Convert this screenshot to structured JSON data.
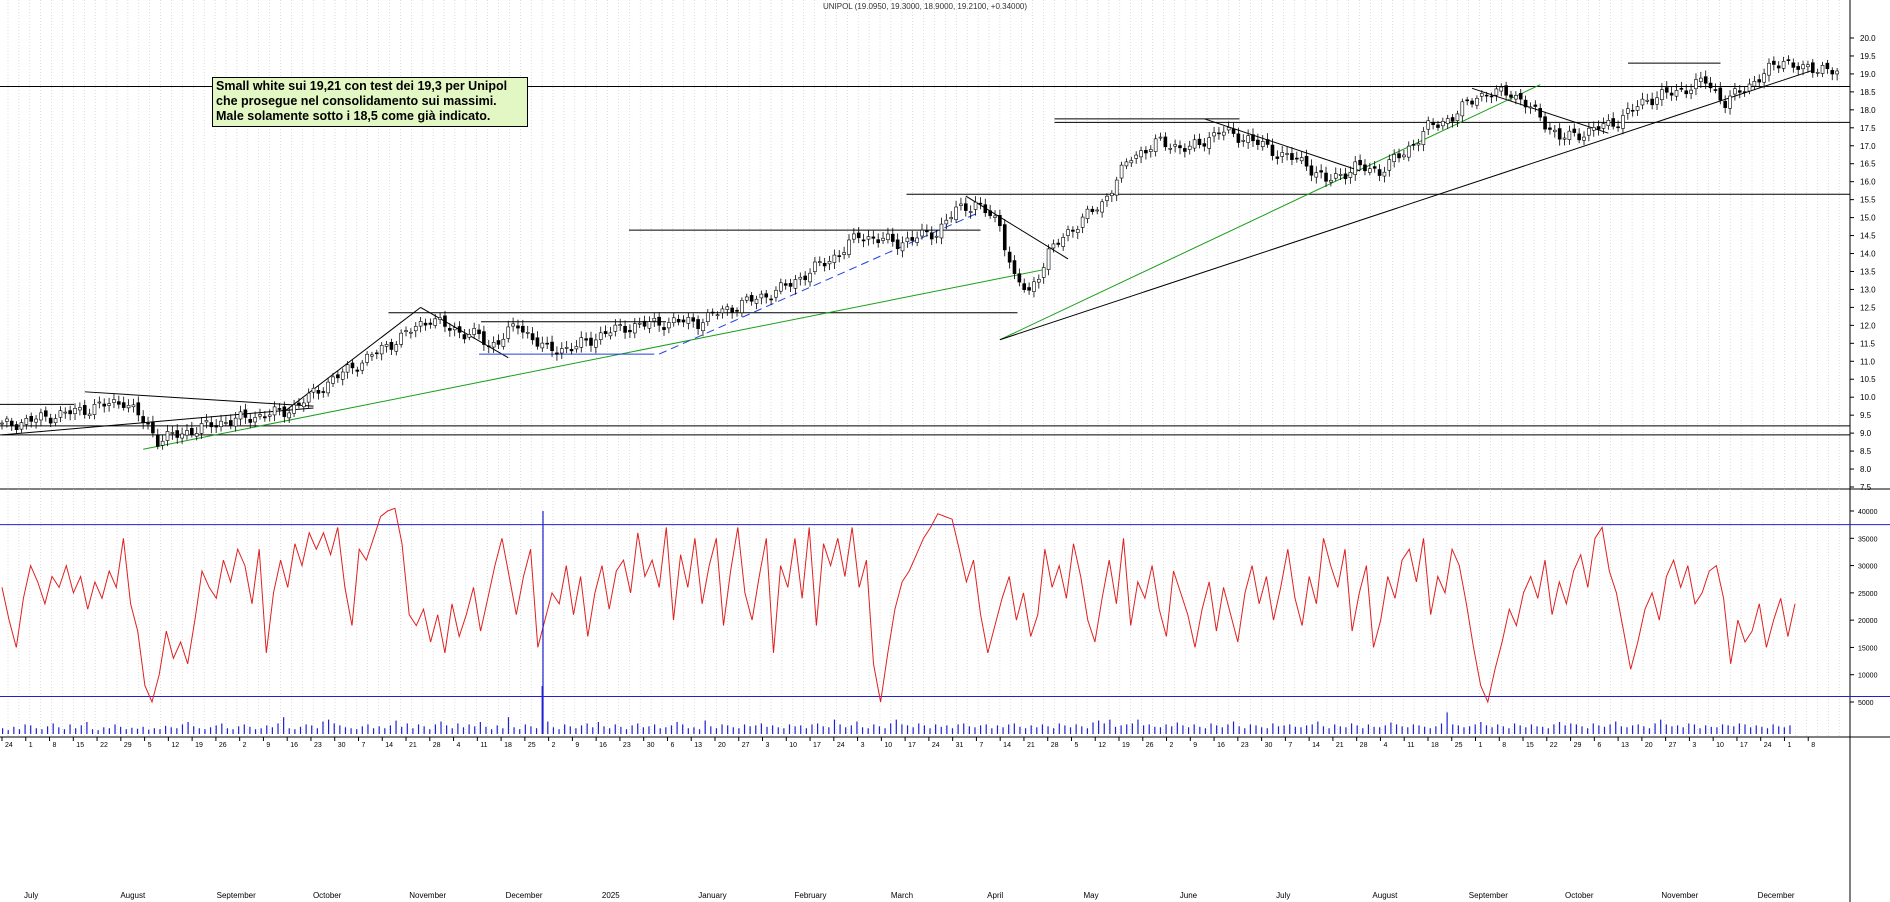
{
  "title": "UNIPOL (19.0950, 19.3000, 18.9000, 19.2100, +0.34000)",
  "annotation": {
    "lines": [
      "Small white sui 19,21 con test dei 19,3 per Unipol",
      "che prosegue nel consolidamento sui massimi.",
      "Male solamente sotto i 18,5 come già indicato."
    ]
  },
  "colors": {
    "candle": "#000000",
    "grid": "#c8c8c8",
    "support_line": "#000000",
    "trend_green": "#1a9e1a",
    "trend_blue_dashed": "#2040e0",
    "oscillator": "#e02020",
    "oscillator_bands": "#2020d0",
    "volume": "#2020d0",
    "note_bg": "#e3f7c4"
  },
  "chart_data": {
    "type": "candlestick",
    "price_axis": {
      "ylim": [
        7.5,
        20.0
      ],
      "ticks": [
        "20.0",
        "19.5",
        "19.0",
        "18.5",
        "18.0",
        "17.5",
        "17.0",
        "16.5",
        "16.0",
        "15.5",
        "15.0",
        "14.5",
        "14.0",
        "13.5",
        "13.0",
        "12.5",
        "12.0",
        "11.5",
        "11.0",
        "10.5",
        "10.0",
        "9.5",
        "9.0",
        "8.5",
        "8.0",
        "7.5"
      ]
    },
    "price_path": [
      [
        0,
        9.2
      ],
      [
        15,
        9.6
      ],
      [
        25,
        9.9
      ],
      [
        30,
        9.2
      ],
      [
        32,
        8.8
      ],
      [
        45,
        9.3
      ],
      [
        58,
        9.6
      ],
      [
        61,
        9.8
      ],
      [
        68,
        10.5
      ],
      [
        80,
        11.5
      ],
      [
        88,
        12.2
      ],
      [
        92,
        11.9
      ],
      [
        98,
        11.7
      ],
      [
        100,
        11.4
      ],
      [
        106,
        12.0
      ],
      [
        112,
        11.3
      ],
      [
        118,
        11.4
      ],
      [
        124,
        11.8
      ],
      [
        130,
        12.0
      ],
      [
        138,
        12.1
      ],
      [
        143,
        12.1
      ],
      [
        148,
        12.4
      ],
      [
        160,
        13.0
      ],
      [
        172,
        14.0
      ],
      [
        176,
        14.5
      ],
      [
        184,
        14.3
      ],
      [
        192,
        14.6
      ],
      [
        196,
        15.2
      ],
      [
        200,
        15.4
      ],
      [
        205,
        14.8
      ],
      [
        208,
        13.3
      ],
      [
        211,
        12.9
      ],
      [
        215,
        14.0
      ],
      [
        219,
        14.6
      ],
      [
        226,
        15.4
      ],
      [
        232,
        16.7
      ],
      [
        238,
        17.1
      ],
      [
        244,
        16.9
      ],
      [
        250,
        17.4
      ],
      [
        256,
        17.2
      ],
      [
        262,
        16.8
      ],
      [
        268,
        16.5
      ],
      [
        272,
        16.0
      ],
      [
        278,
        16.4
      ],
      [
        283,
        16.3
      ],
      [
        288,
        16.8
      ],
      [
        293,
        17.5
      ],
      [
        298,
        17.8
      ],
      [
        303,
        18.4
      ],
      [
        310,
        18.5
      ],
      [
        316,
        17.8
      ],
      [
        320,
        17.2
      ],
      [
        326,
        17.4
      ],
      [
        332,
        17.7
      ],
      [
        338,
        18.3
      ],
      [
        344,
        18.5
      ],
      [
        350,
        18.8
      ],
      [
        354,
        18.2
      ],
      [
        358,
        18.6
      ],
      [
        362,
        19.0
      ],
      [
        366,
        19.4
      ],
      [
        370,
        19.1
      ],
      [
        374,
        19.2
      ],
      [
        377,
        19.0
      ]
    ],
    "support_lines": [
      {
        "price": 18.65,
        "from": 0,
        "to": 1
      },
      {
        "price": 17.65,
        "from": 0.57,
        "to": 1
      },
      {
        "price": 15.65,
        "from": 0.49,
        "to": 1
      },
      {
        "price": 9.2,
        "from": 0,
        "to": 1
      },
      {
        "price": 8.95,
        "from": 0,
        "to": 1
      },
      {
        "price": 14.65,
        "from": 0.34,
        "to": 0.53
      },
      {
        "price": 12.35,
        "from": 0.21,
        "to": 0.55
      },
      {
        "price": 12.1,
        "from": 0.26,
        "to": 0.36
      },
      {
        "price": 9.8,
        "from": 0,
        "to": 0.04
      },
      {
        "price": 17.75,
        "from": 0.57,
        "to": 0.67
      },
      {
        "price": 19.3,
        "from": 0.88,
        "to": 0.93
      }
    ],
    "oscillator": {
      "yticks": [
        "40000",
        "35000",
        "30000",
        "25000",
        "20000",
        "15000",
        "10000",
        "5000"
      ],
      "upper_band": 37500,
      "lower_band": 6000,
      "values": [
        26000,
        20000,
        15000,
        24000,
        30000,
        27000,
        23000,
        28000,
        26000,
        30000,
        25000,
        28000,
        22000,
        27000,
        24000,
        29000,
        26000,
        35000,
        23000,
        18000,
        8000,
        5000,
        10000,
        18000,
        13000,
        16000,
        12000,
        20000,
        29000,
        26000,
        24000,
        31000,
        27000,
        33000,
        30000,
        23000,
        33000,
        14000,
        25000,
        31000,
        26000,
        34000,
        30000,
        36000,
        33000,
        36000,
        32000,
        37000,
        26000,
        19000,
        33000,
        31000,
        35000,
        39000,
        40000,
        40500,
        34000,
        21000,
        19000,
        22000,
        16000,
        21000,
        14000,
        23000,
        17000,
        21000,
        26000,
        18000,
        24000,
        30000,
        35000,
        28000,
        21000,
        28000,
        33000,
        15000,
        20000,
        25000,
        23000,
        30000,
        21000,
        28000,
        17000,
        25000,
        30000,
        22000,
        29000,
        31000,
        25000,
        36000,
        28000,
        31000,
        26000,
        37000,
        20000,
        32000,
        26000,
        35000,
        23000,
        30000,
        35000,
        19000,
        29000,
        37000,
        25000,
        20000,
        28000,
        35000,
        14000,
        30000,
        26000,
        35000,
        24000,
        37000,
        19000,
        34000,
        30000,
        35000,
        28000,
        37000,
        26000,
        31000,
        12000,
        5000,
        14000,
        22000,
        27000,
        29000,
        32000,
        35000,
        37000,
        39500,
        39000,
        38500,
        33000,
        27000,
        31000,
        21000,
        14000,
        19000,
        24000,
        28000,
        20000,
        25000,
        17000,
        21000,
        33000,
        26000,
        30000,
        24000,
        34000,
        28000,
        20000,
        16000,
        24000,
        31000,
        23000,
        35000,
        19000,
        27000,
        24000,
        30000,
        22000,
        17000,
        29000,
        25000,
        21000,
        15000,
        22000,
        27000,
        18000,
        26000,
        21000,
        16000,
        25000,
        30000,
        23000,
        28000,
        20000,
        26000,
        33000,
        24000,
        19000,
        28000,
        23000,
        35000,
        30000,
        26000,
        33000,
        18000,
        25000,
        30000,
        15000,
        20000,
        28000,
        24000,
        31000,
        33000,
        27000,
        35000,
        21000,
        28000,
        25000,
        33000,
        30000,
        23000,
        15000,
        8000,
        5000,
        11000,
        16000,
        22000,
        19000,
        25000,
        28000,
        24000,
        31000,
        21000,
        27000,
        23000,
        29000,
        32000,
        26000,
        35000,
        37000,
        29000,
        25000,
        18000,
        11000,
        16000,
        22000,
        25000,
        20000,
        28000,
        31000,
        26000,
        30000,
        23000,
        25000,
        29000,
        30000,
        24000,
        12000,
        20000,
        16000,
        18000,
        23000,
        15000,
        20000,
        24000,
        17000,
        23000
      ]
    },
    "volume": {
      "spike_index": 96,
      "spike_value": 1.0,
      "bars": [
        0.12,
        0.08,
        0.15,
        0.1,
        0.2,
        0.18,
        0.12,
        0.1,
        0.16,
        0.22,
        0.14,
        0.1,
        0.2,
        0.12,
        0.18,
        0.25,
        0.1,
        0.08,
        0.14,
        0.12,
        0.2,
        0.15,
        0.1,
        0.13,
        0.11,
        0.15,
        0.09,
        0.12,
        0.1,
        0.17,
        0.14,
        0.12,
        0.2,
        0.25,
        0.16,
        0.12,
        0.1,
        0.14,
        0.18,
        0.22,
        0.12,
        0.1,
        0.16,
        0.2,
        0.15,
        0.1,
        0.12,
        0.18,
        0.14,
        0.22,
        0.35,
        0.12,
        0.1,
        0.15,
        0.2,
        0.18,
        0.12,
        0.26,
        0.3,
        0.22,
        0.18,
        0.14,
        0.12,
        0.1,
        0.16,
        0.2,
        0.12,
        0.16,
        0.12,
        0.18,
        0.28,
        0.15,
        0.22,
        0.12,
        0.2,
        0.16,
        0.1,
        0.2,
        0.26,
        0.18,
        0.12,
        0.22,
        0.14,
        0.2,
        0.16,
        0.25,
        0.15,
        0.1,
        0.18,
        0.12,
        0.35,
        0.14,
        0.1,
        0.2,
        0.16,
        0.12,
        1.0,
        0.26,
        0.14,
        0.1,
        0.2,
        0.16,
        0.12,
        0.18,
        0.22,
        0.14,
        0.25,
        0.16,
        0.12,
        0.2,
        0.15,
        0.1,
        0.18,
        0.22,
        0.14,
        0.16,
        0.2,
        0.12,
        0.14,
        0.18,
        0.25,
        0.2,
        0.12,
        0.14,
        0.1,
        0.28,
        0.16,
        0.12,
        0.2,
        0.18,
        0.14,
        0.12,
        0.2,
        0.16,
        0.18,
        0.22,
        0.15,
        0.18,
        0.14,
        0.12,
        0.2,
        0.16,
        0.18,
        0.12,
        0.2,
        0.22,
        0.16,
        0.14,
        0.3,
        0.2,
        0.14,
        0.18,
        0.26,
        0.14,
        0.12,
        0.2,
        0.16,
        0.12,
        0.22,
        0.3,
        0.2,
        0.18,
        0.14,
        0.22,
        0.18,
        0.12,
        0.2,
        0.15,
        0.18,
        0.12,
        0.2,
        0.22,
        0.16,
        0.14,
        0.18,
        0.2,
        0.12,
        0.18,
        0.14,
        0.2,
        0.22,
        0.15,
        0.12,
        0.18,
        0.14,
        0.2,
        0.16,
        0.12,
        0.22,
        0.18,
        0.14,
        0.2,
        0.16,
        0.12,
        0.24,
        0.28,
        0.22,
        0.3,
        0.15,
        0.18,
        0.2,
        0.22,
        0.3,
        0.18,
        0.2,
        0.15,
        0.14,
        0.2,
        0.16,
        0.24,
        0.18,
        0.14,
        0.2,
        0.15,
        0.12,
        0.22,
        0.18,
        0.14,
        0.2,
        0.26,
        0.16,
        0.12,
        0.2,
        0.18,
        0.14,
        0.12,
        0.22,
        0.16,
        0.18,
        0.2,
        0.15,
        0.14,
        0.18,
        0.2,
        0.26,
        0.16,
        0.12,
        0.2,
        0.16,
        0.14,
        0.22,
        0.18,
        0.12,
        0.2,
        0.15,
        0.14,
        0.18,
        0.24,
        0.2,
        0.16,
        0.14,
        0.2,
        0.18,
        0.15,
        0.12,
        0.16,
        0.22,
        0.45,
        0.2,
        0.18,
        0.14,
        0.16,
        0.2,
        0.25,
        0.18,
        0.14,
        0.2,
        0.16,
        0.12,
        0.22,
        0.18,
        0.14,
        0.2,
        0.16,
        0.15,
        0.12,
        0.2,
        0.25,
        0.18,
        0.22,
        0.2,
        0.16,
        0.12,
        0.22,
        0.18,
        0.15,
        0.2,
        0.26,
        0.16,
        0.14,
        0.18,
        0.2,
        0.16,
        0.12,
        0.22,
        0.3,
        0.2,
        0.16,
        0.18,
        0.14,
        0.22,
        0.2,
        0.12,
        0.18,
        0.15,
        0.14,
        0.2,
        0.18,
        0.16,
        0.22,
        0.2,
        0.14,
        0.18,
        0.15,
        0.12,
        0.2,
        0.16,
        0.14,
        0.18
      ]
    },
    "x_axis": {
      "day_ticks": [
        "24",
        "1",
        "8",
        "15",
        "22",
        "29",
        "5",
        "12",
        "19",
        "26",
        "2",
        "9",
        "16",
        "23",
        "30",
        "7",
        "14",
        "21",
        "28",
        "4",
        "11",
        "18",
        "25",
        "2",
        "9",
        "16",
        "23",
        "30",
        "6",
        "13",
        "20",
        "27",
        "3",
        "10",
        "17",
        "24",
        "3",
        "10",
        "17",
        "24",
        "31",
        "7",
        "14",
        "21",
        "28",
        "5",
        "12",
        "19",
        "26",
        "2",
        "9",
        "16",
        "23",
        "30",
        "7",
        "14",
        "21",
        "28",
        "4",
        "11",
        "18",
        "25",
        "1",
        "8",
        "15",
        "22",
        "29",
        "6",
        "13",
        "20",
        "27",
        "3",
        "10",
        "17",
        "24",
        "1",
        "8"
      ],
      "months": [
        "July",
        "August",
        "September",
        "October",
        "November",
        "December",
        "2025",
        "January",
        "February",
        "March",
        "April",
        "May",
        "June",
        "July",
        "August",
        "September",
        "October",
        "November",
        "December"
      ]
    }
  }
}
